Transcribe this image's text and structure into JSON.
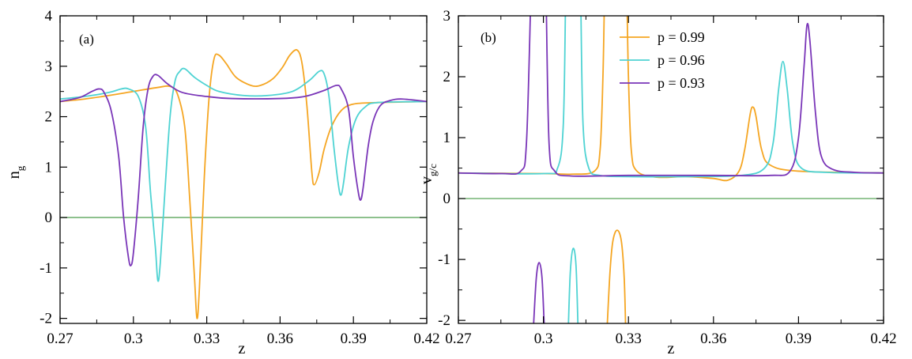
{
  "chart_data": [
    {
      "type": "line",
      "panel_label": "(a)",
      "xlabel": "z",
      "ylabel_main": "n",
      "ylabel_sub": "g",
      "xlim": [
        0.27,
        0.42
      ],
      "ylim": [
        -2.1,
        4
      ],
      "xticks": [
        0.27,
        0.3,
        0.33,
        0.36,
        0.39,
        0.42
      ],
      "xtick_labels": [
        "0.27",
        "0.3",
        "0.33",
        "0.36",
        "0.39",
        "0.42"
      ],
      "yticks": [
        -2,
        -1,
        0,
        1,
        2,
        3,
        4
      ],
      "ytick_labels": [
        "-2",
        "-1",
        "0",
        "1",
        "2",
        "3",
        "4"
      ],
      "grid": false,
      "reference_line": {
        "y": 0,
        "color": "#5aa55a"
      },
      "series": [
        {
          "key": "p099",
          "color": "#f5a623",
          "points": [
            [
              0.27,
              2.3
            ],
            [
              0.28,
              2.35
            ],
            [
              0.29,
              2.42
            ],
            [
              0.3,
              2.5
            ],
            [
              0.31,
              2.58
            ],
            [
              0.315,
              2.6
            ],
            [
              0.318,
              2.45
            ],
            [
              0.321,
              1.8
            ],
            [
              0.323,
              0.4
            ],
            [
              0.325,
              -1.2
            ],
            [
              0.326,
              -2.0
            ],
            [
              0.327,
              -1.4
            ],
            [
              0.329,
              0.8
            ],
            [
              0.331,
              2.4
            ],
            [
              0.333,
              3.15
            ],
            [
              0.335,
              3.22
            ],
            [
              0.338,
              3.05
            ],
            [
              0.342,
              2.78
            ],
            [
              0.348,
              2.62
            ],
            [
              0.352,
              2.62
            ],
            [
              0.357,
              2.75
            ],
            [
              0.361,
              2.98
            ],
            [
              0.364,
              3.22
            ],
            [
              0.367,
              3.32
            ],
            [
              0.369,
              3.05
            ],
            [
              0.371,
              2.2
            ],
            [
              0.373,
              0.9
            ],
            [
              0.374,
              0.65
            ],
            [
              0.376,
              0.9
            ],
            [
              0.378,
              1.35
            ],
            [
              0.381,
              1.8
            ],
            [
              0.385,
              2.12
            ],
            [
              0.39,
              2.25
            ],
            [
              0.4,
              2.28
            ],
            [
              0.42,
              2.3
            ]
          ]
        },
        {
          "key": "p096",
          "color": "#4fd3d3",
          "points": [
            [
              0.27,
              2.35
            ],
            [
              0.28,
              2.4
            ],
            [
              0.29,
              2.48
            ],
            [
              0.295,
              2.55
            ],
            [
              0.298,
              2.55
            ],
            [
              0.302,
              2.4
            ],
            [
              0.305,
              1.8
            ],
            [
              0.307,
              0.5
            ],
            [
              0.309,
              -0.6
            ],
            [
              0.31,
              -1.25
            ],
            [
              0.311,
              -0.9
            ],
            [
              0.313,
              0.6
            ],
            [
              0.315,
              2.0
            ],
            [
              0.317,
              2.7
            ],
            [
              0.319,
              2.9
            ],
            [
              0.321,
              2.95
            ],
            [
              0.325,
              2.78
            ],
            [
              0.33,
              2.62
            ],
            [
              0.335,
              2.5
            ],
            [
              0.345,
              2.42
            ],
            [
              0.355,
              2.42
            ],
            [
              0.365,
              2.5
            ],
            [
              0.372,
              2.72
            ],
            [
              0.376,
              2.9
            ],
            [
              0.378,
              2.85
            ],
            [
              0.38,
              2.4
            ],
            [
              0.382,
              1.4
            ],
            [
              0.384,
              0.6
            ],
            [
              0.385,
              0.45
            ],
            [
              0.386,
              0.7
            ],
            [
              0.388,
              1.4
            ],
            [
              0.391,
              1.95
            ],
            [
              0.395,
              2.2
            ],
            [
              0.4,
              2.28
            ],
            [
              0.42,
              2.3
            ]
          ]
        },
        {
          "key": "p093",
          "color": "#7a36b8",
          "points": [
            [
              0.27,
              2.3
            ],
            [
              0.278,
              2.38
            ],
            [
              0.283,
              2.5
            ],
            [
              0.286,
              2.55
            ],
            [
              0.288,
              2.48
            ],
            [
              0.291,
              2.1
            ],
            [
              0.294,
              1.2
            ],
            [
              0.296,
              0.0
            ],
            [
              0.298,
              -0.8
            ],
            [
              0.299,
              -0.95
            ],
            [
              0.3,
              -0.7
            ],
            [
              0.302,
              0.4
            ],
            [
              0.304,
              1.8
            ],
            [
              0.306,
              2.55
            ],
            [
              0.308,
              2.8
            ],
            [
              0.31,
              2.82
            ],
            [
              0.314,
              2.65
            ],
            [
              0.32,
              2.48
            ],
            [
              0.33,
              2.4
            ],
            [
              0.34,
              2.36
            ],
            [
              0.36,
              2.36
            ],
            [
              0.37,
              2.4
            ],
            [
              0.378,
              2.52
            ],
            [
              0.383,
              2.62
            ],
            [
              0.385,
              2.55
            ],
            [
              0.388,
              2.15
            ],
            [
              0.39,
              1.2
            ],
            [
              0.392,
              0.5
            ],
            [
              0.393,
              0.35
            ],
            [
              0.394,
              0.6
            ],
            [
              0.396,
              1.4
            ],
            [
              0.398,
              1.9
            ],
            [
              0.401,
              2.22
            ],
            [
              0.405,
              2.32
            ],
            [
              0.41,
              2.35
            ],
            [
              0.42,
              2.3
            ]
          ]
        }
      ]
    },
    {
      "type": "line",
      "panel_label": "(b)",
      "xlabel": "z",
      "ylabel_main": "v",
      "ylabel_sub": "g/c",
      "xlim": [
        0.27,
        0.42
      ],
      "ylim": [
        -2.05,
        3
      ],
      "xticks": [
        0.27,
        0.3,
        0.33,
        0.36,
        0.39,
        0.42
      ],
      "xtick_labels": [
        "0.27",
        "0.3",
        "0.33",
        "0.36",
        "0.39",
        "0.42"
      ],
      "yticks": [
        -2,
        -1,
        0,
        1,
        2,
        3
      ],
      "ytick_labels": [
        "-2",
        "-1",
        "0",
        "1",
        "2",
        "3"
      ],
      "grid": false,
      "reference_line": {
        "y": 0,
        "color": "#5aa55a"
      },
      "legend_position": "top-center",
      "series": [
        {
          "key": "p099",
          "name": "p = 0.99",
          "color": "#f5a623",
          "segments": [
            [
              [
                0.27,
                0.42
              ],
              [
                0.3,
                0.41
              ],
              [
                0.31,
                0.4
              ],
              [
                0.318,
                0.45
              ],
              [
                0.32,
                0.8
              ],
              [
                0.321,
                2.0
              ],
              [
                0.3215,
                3.2
              ]
            ],
            [
              [
                0.3225,
                -2.1
              ],
              [
                0.3235,
                -1.2
              ],
              [
                0.3245,
                -0.7
              ],
              [
                0.326,
                -0.52
              ],
              [
                0.3275,
                -0.7
              ],
              [
                0.3285,
                -1.3
              ],
              [
                0.329,
                -2.1
              ]
            ],
            [
              [
                0.3295,
                3.2
              ],
              [
                0.33,
                2.0
              ],
              [
                0.331,
                0.8
              ],
              [
                0.333,
                0.45
              ],
              [
                0.34,
                0.35
              ],
              [
                0.35,
                0.36
              ],
              [
                0.36,
                0.33
              ],
              [
                0.365,
                0.3
              ],
              [
                0.369,
                0.45
              ],
              [
                0.371,
                0.8
              ],
              [
                0.373,
                1.4
              ],
              [
                0.374,
                1.5
              ],
              [
                0.375,
                1.35
              ],
              [
                0.377,
                0.8
              ],
              [
                0.38,
                0.55
              ],
              [
                0.39,
                0.45
              ],
              [
                0.42,
                0.42
              ]
            ]
          ]
        },
        {
          "key": "p096",
          "name": "p = 0.96",
          "color": "#4fd3d3",
          "segments": [
            [
              [
                0.27,
                0.42
              ],
              [
                0.3,
                0.41
              ],
              [
                0.305,
                0.5
              ],
              [
                0.307,
                1.2
              ],
              [
                0.3078,
                3.2
              ]
            ],
            [
              [
                0.3088,
                -2.1
              ],
              [
                0.3095,
                -1.2
              ],
              [
                0.3105,
                -0.82
              ],
              [
                0.3115,
                -1.1
              ],
              [
                0.3122,
                -2.1
              ]
            ],
            [
              [
                0.3132,
                3.2
              ],
              [
                0.314,
                1.2
              ],
              [
                0.316,
                0.5
              ],
              [
                0.32,
                0.38
              ],
              [
                0.33,
                0.36
              ],
              [
                0.35,
                0.36
              ],
              [
                0.37,
                0.38
              ],
              [
                0.378,
                0.5
              ],
              [
                0.381,
                0.9
              ],
              [
                0.383,
                1.8
              ],
              [
                0.3845,
                2.25
              ],
              [
                0.386,
                1.8
              ],
              [
                0.388,
                0.9
              ],
              [
                0.391,
                0.5
              ],
              [
                0.4,
                0.43
              ],
              [
                0.42,
                0.42
              ]
            ]
          ]
        },
        {
          "key": "p093",
          "name": "p = 0.93",
          "color": "#7a36b8",
          "segments": [
            [
              [
                0.27,
                0.42
              ],
              [
                0.285,
                0.41
              ],
              [
                0.292,
                0.45
              ],
              [
                0.294,
                0.9
              ],
              [
                0.2955,
                3.2
              ]
            ],
            [
              [
                0.2965,
                -2.1
              ],
              [
                0.2975,
                -1.3
              ],
              [
                0.2985,
                -1.05
              ],
              [
                0.2995,
                -1.3
              ],
              [
                0.3003,
                -2.1
              ]
            ],
            [
              [
                0.301,
                3.2
              ],
              [
                0.302,
                0.9
              ],
              [
                0.304,
                0.45
              ],
              [
                0.31,
                0.37
              ],
              [
                0.33,
                0.38
              ],
              [
                0.36,
                0.38
              ],
              [
                0.38,
                0.38
              ],
              [
                0.387,
                0.45
              ],
              [
                0.39,
                1.0
              ],
              [
                0.392,
                2.2
              ],
              [
                0.393,
                2.85
              ],
              [
                0.394,
                2.6
              ],
              [
                0.396,
                1.4
              ],
              [
                0.398,
                0.7
              ],
              [
                0.402,
                0.48
              ],
              [
                0.41,
                0.43
              ],
              [
                0.42,
                0.42
              ]
            ]
          ]
        }
      ]
    }
  ]
}
